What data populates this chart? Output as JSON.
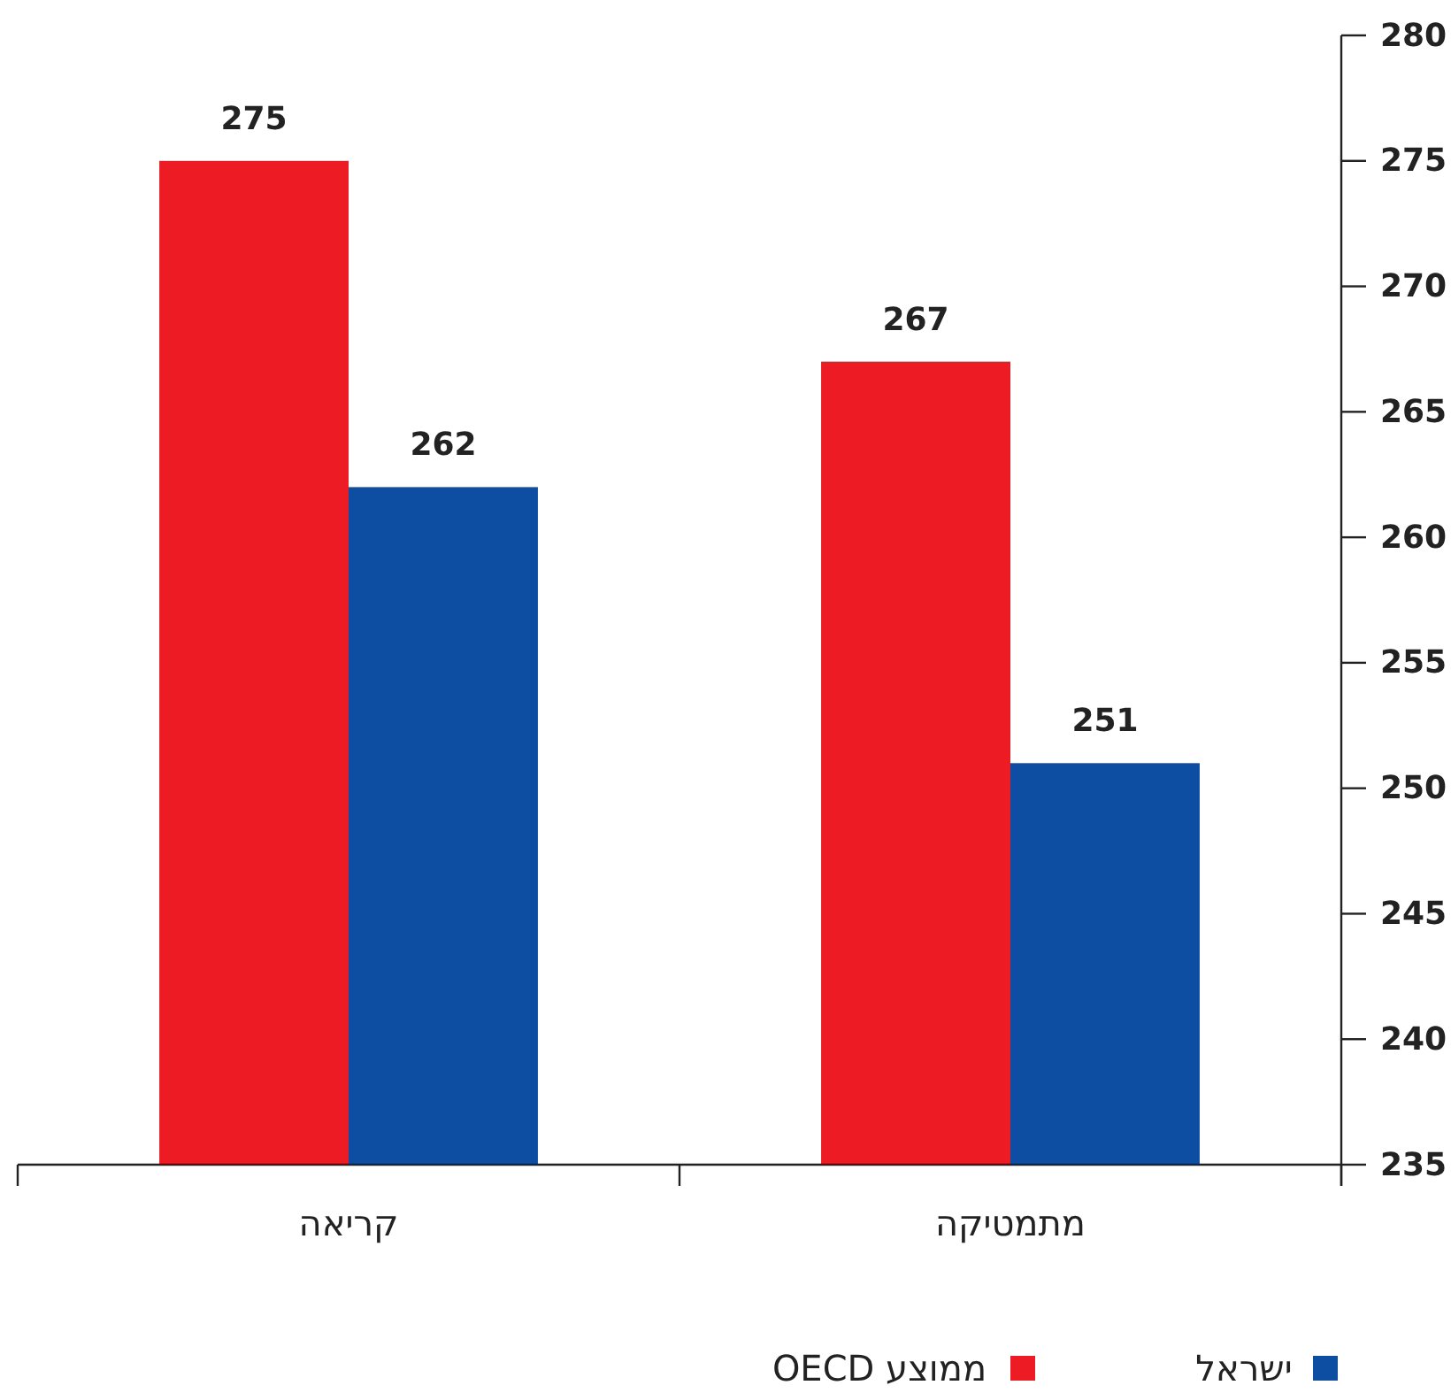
{
  "chart_data": {
    "type": "bar",
    "categories": [
      "קריאה",
      "מתמטיקה"
    ],
    "series": [
      {
        "name": "ממוצע OECD",
        "color": "#ed1c24",
        "values": [
          275,
          267
        ]
      },
      {
        "name": "ישראל",
        "color": "#0d4ea2",
        "values": [
          262,
          251
        ]
      }
    ],
    "ylim": [
      235,
      280
    ],
    "yticks": [
      235,
      240,
      245,
      250,
      255,
      260,
      265,
      270,
      275,
      280
    ],
    "data_labels": true,
    "legend": "bottom"
  }
}
